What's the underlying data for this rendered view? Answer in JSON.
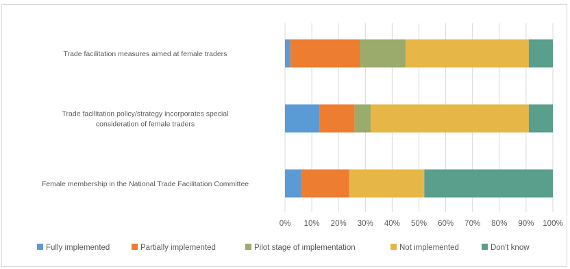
{
  "chart_data": {
    "type": "bar",
    "orientation": "horizontal",
    "stacked": true,
    "categories": [
      "Trade facilitation measures aimed at female traders",
      "Trade facilitation policy/strategy incorporates special consideration of female traders",
      "Female membership in the National Trade Facilitation Committee"
    ],
    "category_lines": [
      [
        "Trade facilitation measures aimed at female traders"
      ],
      [
        "Trade facilitation policy/strategy incorporates special",
        "consideration of female traders"
      ],
      [
        "Female membership in the National Trade Facilitation Committee"
      ]
    ],
    "series": [
      {
        "name": "Fully implemented",
        "color": "#5b9bd5",
        "values": [
          2,
          13,
          6
        ]
      },
      {
        "name": "Partially implemented",
        "color": "#ed7d31",
        "values": [
          26,
          13,
          18
        ]
      },
      {
        "name": "Pilot stage of implementation",
        "color": "#9bab6b",
        "values": [
          17,
          6,
          0
        ]
      },
      {
        "name": "Not implemented",
        "color": "#e6b746",
        "values": [
          46,
          59,
          28
        ]
      },
      {
        "name": "Don't know",
        "color": "#5a9e8c",
        "values": [
          9,
          9,
          48
        ]
      }
    ],
    "xlim": [
      0,
      100
    ],
    "xticks": [
      "0%",
      "10%",
      "20%",
      "30%",
      "40%",
      "50%",
      "60%",
      "70%",
      "80%",
      "90%",
      "100%"
    ],
    "grid": true,
    "legend_position": "bottom",
    "title": "",
    "xlabel": "",
    "ylabel": ""
  }
}
